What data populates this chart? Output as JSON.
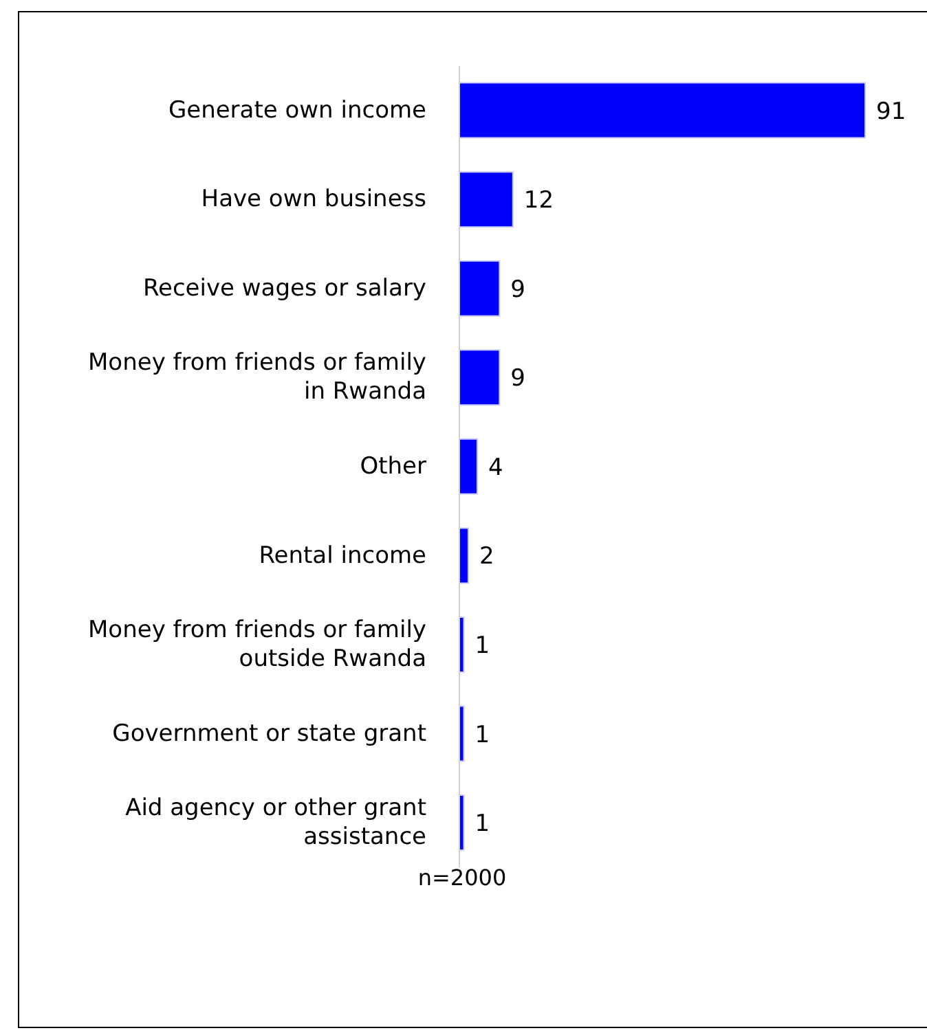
{
  "chart_data": {
    "type": "bar",
    "orientation": "horizontal",
    "categories": [
      "Generate own income",
      "Have own business",
      "Receive wages or salary",
      "Money from friends or family in Rwanda",
      "Other",
      "Rental income",
      "Money from friends or family outside Rwanda",
      "Government or state grant",
      "Aid agency or other grant assistance"
    ],
    "values": [
      91,
      12,
      9,
      9,
      4,
      2,
      1,
      1,
      1
    ],
    "color": "#0000ff",
    "data_labels": true,
    "annotations": [
      "n=2000"
    ]
  }
}
